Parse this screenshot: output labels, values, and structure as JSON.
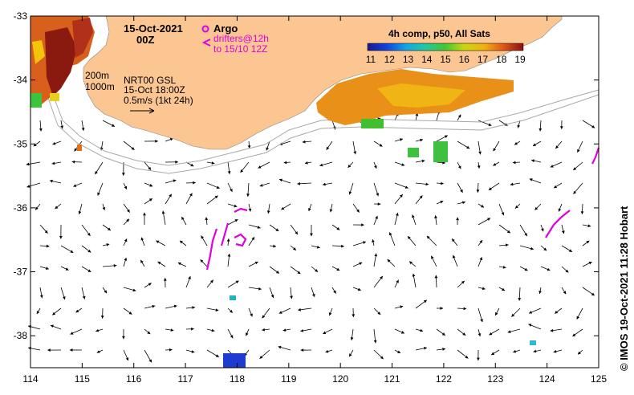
{
  "map": {
    "date_title": "15-Oct-2021",
    "time_title": "00Z",
    "lon_ticks": [
      "114",
      "115",
      "116",
      "117",
      "118",
      "119",
      "120",
      "121",
      "122",
      "123",
      "124",
      "125"
    ],
    "lat_ticks": [
      "-33",
      "-34",
      "-35",
      "-36",
      "-37",
      "-38"
    ],
    "lon_range": [
      114,
      125
    ],
    "lat_range": [
      -38.5,
      -33
    ]
  },
  "legend": {
    "argo_label": "Argo",
    "drifter_line1": "drifters@12h",
    "drifter_line2": "to 15/10 12Z",
    "isobath_200": "200m",
    "isobath_1000": "1000m",
    "nrt_line1": "NRT00 GSL",
    "nrt_line2": "15-Oct 18:00Z",
    "nrt_line3": "0.5m/s (1kt 24h)"
  },
  "colorbar": {
    "title": "4h comp, p50, All Sats",
    "labels": [
      "11",
      "12",
      "13",
      "14",
      "15",
      "16",
      "17",
      "18",
      "19"
    ]
  },
  "credit": "© IMOS 19-Oct-2021 11:28 Hobart",
  "colors": {
    "land": "#fbc692",
    "drifter": "#e000e0",
    "argo": "#e000e0"
  }
}
